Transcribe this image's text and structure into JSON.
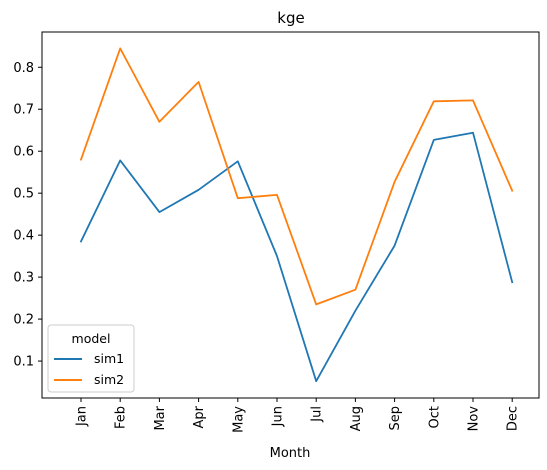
{
  "chart_data": {
    "type": "line",
    "title": "kge",
    "xlabel": "Month",
    "ylabel": "",
    "categories": [
      "Jan",
      "Feb",
      "Mar",
      "Apr",
      "May",
      "Jun",
      "Jul",
      "Aug",
      "Sep",
      "Oct",
      "Nov",
      "Dec"
    ],
    "ylim": [
      0.012,
      0.884
    ],
    "yticks": [
      0.1,
      0.2,
      0.3,
      0.4,
      0.5,
      0.6,
      0.7,
      0.8
    ],
    "ytick_labels": [
      "0.1",
      "0.2",
      "0.3",
      "0.4",
      "0.5",
      "0.6",
      "0.7",
      "0.8"
    ],
    "series": [
      {
        "name": "sim1",
        "color": "#1f77b4",
        "values": [
          0.385,
          0.578,
          0.455,
          0.508,
          0.576,
          0.35,
          0.052,
          0.22,
          0.375,
          0.627,
          0.644,
          0.288
        ]
      },
      {
        "name": "sim2",
        "color": "#ff7f0e",
        "values": [
          0.58,
          0.845,
          0.67,
          0.765,
          0.488,
          0.496,
          0.235,
          0.27,
          0.527,
          0.719,
          0.721,
          0.506
        ]
      }
    ],
    "legend": {
      "title": "model",
      "location": "lower-left"
    },
    "grid": false
  }
}
